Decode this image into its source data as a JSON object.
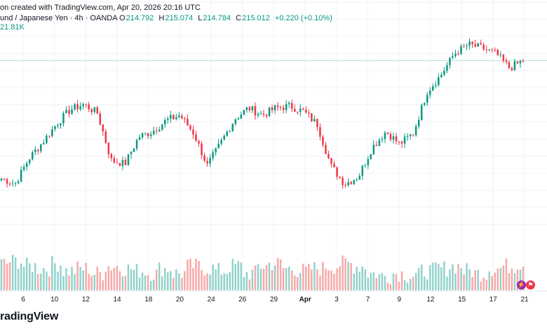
{
  "header": {
    "created_text": "on created with TradingView.com, Apr 20, 2026 20:16 UTC",
    "symbol_text": "und / Japanese Yen · 4h · OANDA",
    "o_label": "O",
    "o_value": "214.792",
    "h_label": "H",
    "h_value": "215.074",
    "l_label": "L",
    "l_value": "214.784",
    "c_label": "C",
    "c_value": "215.012",
    "change_text": "+0.220 (+0.10%)",
    "volume_text": "21.81K"
  },
  "footer": {
    "brand": "radingView"
  },
  "colors": {
    "up": "#089981",
    "down": "#f23645",
    "up_volume": "#92d2cc",
    "down_volume": "#f7a9a7",
    "grid": "#f0f3fa",
    "last_price_line": "#b2dfdb"
  },
  "icons": [
    "lightning-icon",
    "flag-icon"
  ],
  "chart_data": {
    "type": "candlestick",
    "title": "",
    "xlabel": "",
    "ylabel": "",
    "timeframe": "4h",
    "y_axis_visible": false,
    "grid": true,
    "ylim": [
      205.0,
      216.5
    ],
    "last_price": 215.012,
    "x_ticks": [
      "6",
      "10",
      "12",
      "14",
      "18",
      "20",
      "24",
      "26",
      "29",
      "Apr",
      "3",
      "7",
      "9",
      "12",
      "15",
      "17",
      "21"
    ],
    "ohlc_anchor_close": [
      208.5,
      208.2,
      209.6,
      210.5,
      211.5,
      212.3,
      212.6,
      212.1,
      209.5,
      209.3,
      210.8,
      211.1,
      211.7,
      212.0,
      211.0,
      209.2,
      210.5,
      211.8,
      212.4,
      212.0,
      212.4,
      212.5,
      212.2,
      211.5,
      209.2,
      208.2,
      208.6,
      210.2,
      211.1,
      210.4,
      211.0,
      213.3,
      214.2,
      215.4,
      215.9,
      215.7,
      215.4,
      214.6,
      215.0
    ],
    "volume_relative": [
      0.55,
      0.6,
      0.5,
      0.45,
      0.55,
      0.4,
      0.45,
      0.35,
      0.5,
      0.45,
      0.4,
      0.35,
      0.45,
      0.35,
      0.5,
      0.45,
      0.4,
      0.5,
      0.35,
      0.5,
      0.55,
      0.45,
      0.4,
      0.45,
      0.5,
      0.55,
      0.5,
      0.35,
      0.3,
      0.35,
      0.3,
      0.4,
      0.45,
      0.5,
      0.4,
      0.35,
      0.45,
      0.5,
      0.55
    ]
  }
}
